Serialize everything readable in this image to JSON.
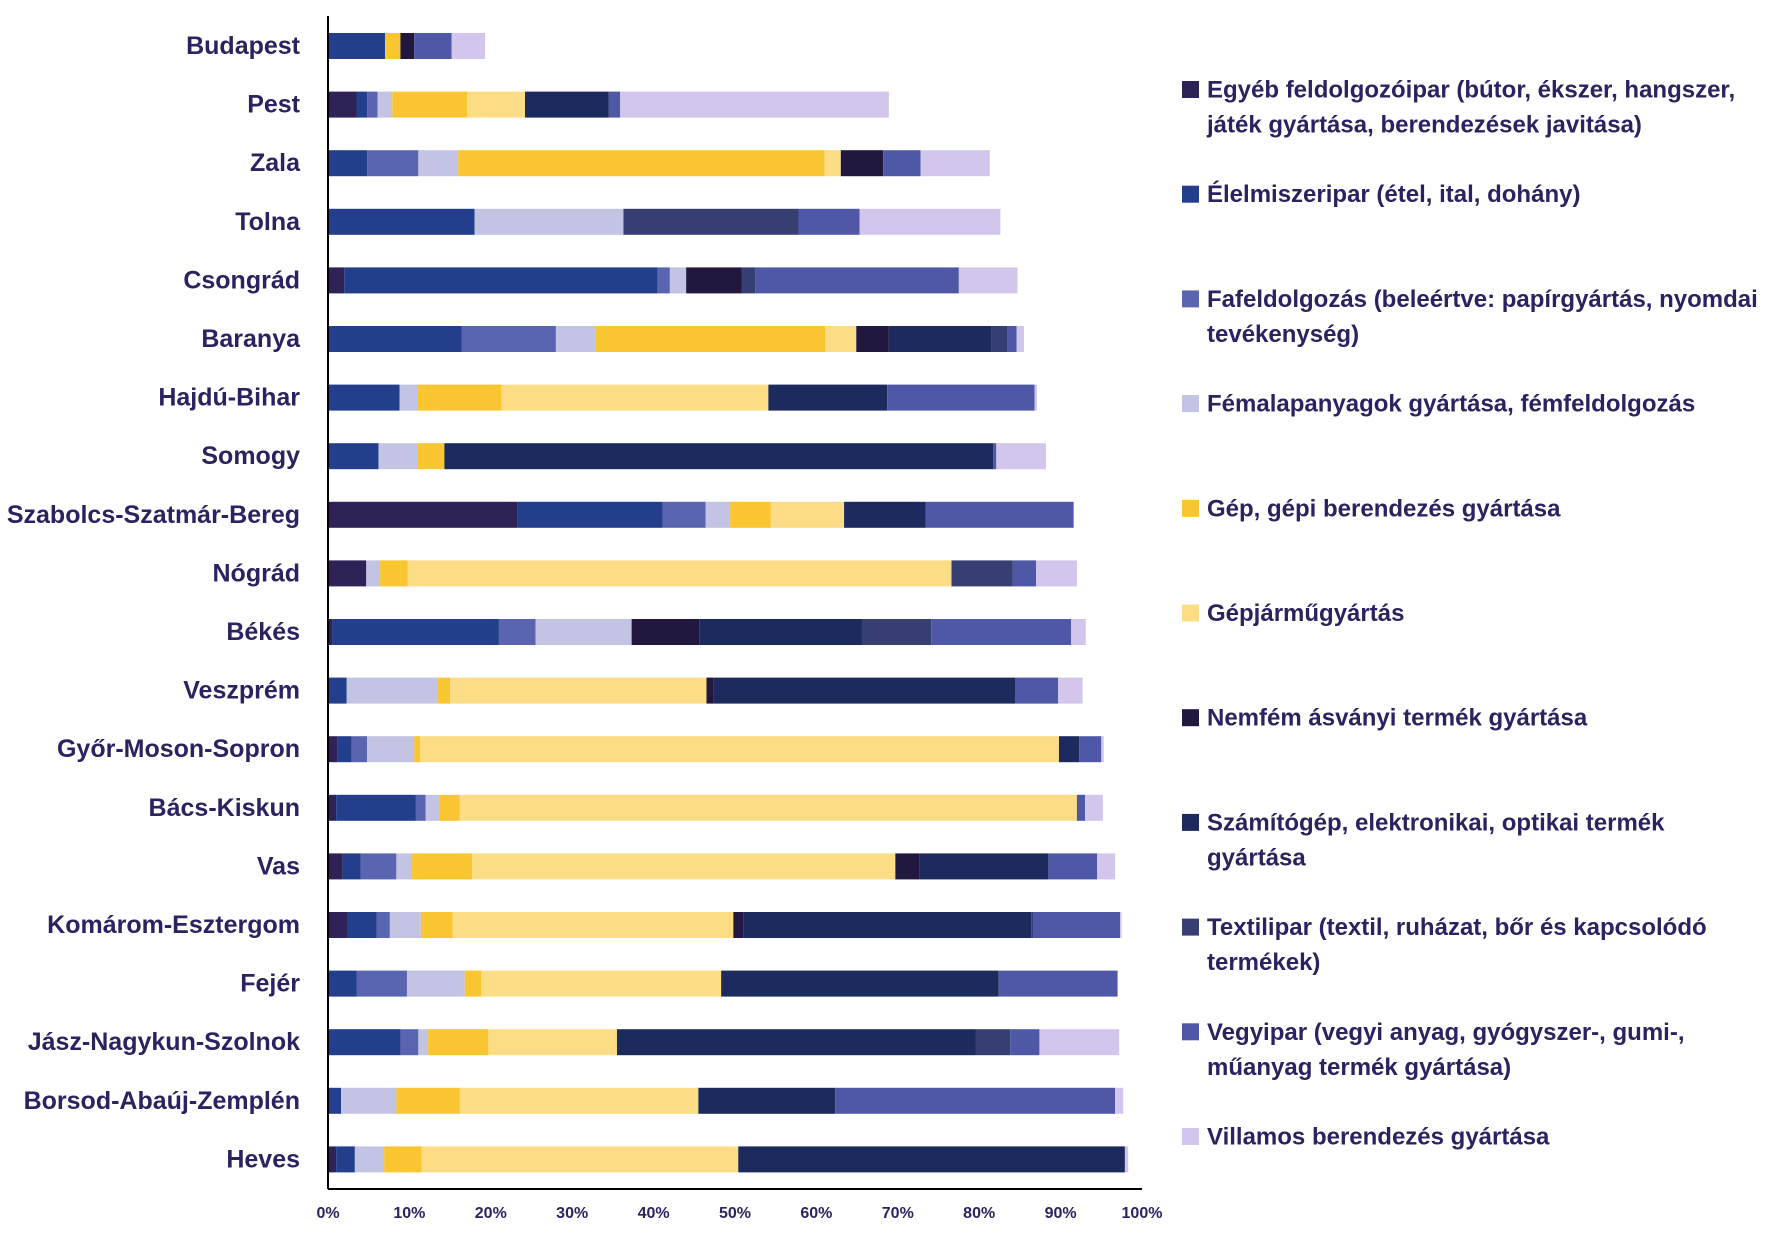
{
  "chart_data": {
    "type": "bar",
    "orientation": "horizontal",
    "stacked": "percent",
    "xlim": [
      0,
      100
    ],
    "ticks": [
      "0%",
      "10%",
      "20%",
      "30%",
      "40%",
      "50%",
      "60%",
      "70%",
      "80%",
      "90%",
      "100%"
    ],
    "grid": false,
    "legend_position": "right",
    "categories": [
      "Budapest",
      "Pest",
      "Zala",
      "Tolna",
      "Csongrád",
      "Baranya",
      "Hajdú-Bihar",
      "Somogy",
      "Szabolcs-Szatmár-Bereg",
      "Nógrád",
      "Békés",
      "Veszprém",
      "Győr-Moson-Sopron",
      "Bács-Kiskun",
      "Vas",
      "Komárom-Esztergom",
      "Fejér",
      "Jász-Nagykun-Szolnok",
      "Borsod-Abaúj-Zemplén",
      "Heves"
    ],
    "series": [
      {
        "name": "Egyéb feldolgozóipar (bútor, ékszer, hangszer, játék gyártása, berendezések javítása)",
        "lines": [
          "Egyéb feldolgozóipar (bútor, ékszer, hangszer,",
          "játék gyártása, berendezések javitása)"
        ],
        "color": "#2e2257",
        "values": [
          0,
          3.5,
          0,
          0,
          2,
          0,
          0,
          0,
          23.3,
          4.7,
          0.5,
          0,
          1.2,
          1,
          1.8,
          2.4,
          0,
          0,
          0,
          1
        ]
      },
      {
        "name": "Élelmiszeripar (étel, ital, dohány)",
        "lines": [
          "Élelmiszeripar (étel, ital, dohány)"
        ],
        "color": "#233e8b",
        "values": [
          7,
          1.3,
          4.8,
          18,
          38.5,
          16.4,
          8.8,
          6.2,
          17.8,
          0,
          20.5,
          2.3,
          1.7,
          9.8,
          2.2,
          3.6,
          3.5,
          8.9,
          1.6,
          2.3
        ]
      },
      {
        "name": "Fafeldolgozás (beleértve: papírgyártás, nyomdai tevékenység)",
        "lines": [
          "Fafeldolgozás (beleértve: papírgyártás, nyomdai",
          "tevékenység)"
        ],
        "color": "#5a65b2",
        "values": [
          0,
          1.3,
          6.3,
          0,
          1.5,
          11.6,
          0,
          0,
          5.3,
          0,
          4.5,
          0,
          1.9,
          1.2,
          4.4,
          1.6,
          6.2,
          2.2,
          0,
          0
        ]
      },
      {
        "name": "Fémalapanyagok gyártása, fémfeldolgozás",
        "lines": [
          "Fémalapanyagok gyártása, fémfeldolgozás"
        ],
        "color": "#c3c3e3",
        "values": [
          0,
          1.8,
          4.9,
          18.3,
          2,
          4.9,
          2.2,
          4.8,
          3,
          1.7,
          11.8,
          11.1,
          5.8,
          1.7,
          1.8,
          3.8,
          7.1,
          1.2,
          6.8,
          3.6
        ]
      },
      {
        "name": "Gép, gépi berendezés gyártása",
        "lines": [
          "Gép, gépi berendezés gyártása"
        ],
        "color": "#f9c531",
        "values": [
          1.9,
          9.2,
          45,
          0,
          0,
          28.2,
          10.3,
          3.3,
          5,
          3.4,
          0,
          1.6,
          0.7,
          2.5,
          7.5,
          3.9,
          2,
          7.4,
          7.8,
          4.6
        ]
      },
      {
        "name": "Gépjárműgyártás",
        "lines": [
          "Gépjárműgyártás"
        ],
        "color": "#fcdc84",
        "values": [
          0,
          7.1,
          2,
          0,
          0,
          3.8,
          32.8,
          0,
          9,
          66.8,
          0,
          31.5,
          78.5,
          75.8,
          52,
          34.5,
          29.5,
          15.8,
          29.3,
          38.9
        ]
      },
      {
        "name": "Nemfém ásványi termék gyártása",
        "lines": [
          "Nemfém ásványi termék gyártása"
        ],
        "color": "#22183f",
        "values": [
          1.7,
          0,
          5.2,
          0,
          6.8,
          4,
          0,
          0,
          0,
          0,
          8.3,
          0.9,
          0,
          0,
          3,
          1.2,
          0,
          0,
          0,
          0
        ]
      },
      {
        "name": "Számítógép, elektronikai, optikai termék gyártása",
        "lines": [
          "Számítógép, elektronikai, optikai termék",
          "gyártása"
        ],
        "color": "#1d2a5e",
        "values": [
          0,
          10.3,
          0,
          0,
          0,
          12.6,
          14.6,
          67.4,
          10,
          0,
          20,
          37,
          2.5,
          0,
          15.8,
          35.4,
          34.1,
          44.1,
          16.8,
          47.5
        ]
      },
      {
        "name": "Textilipar (textil, ruházat, bőr és kapcsolódó termékek)",
        "lines": [
          "Textilipar (textil, ruházat, bőr és kapcsolódó",
          "termékek)"
        ],
        "color": "#373f72",
        "values": [
          0,
          0,
          0,
          21.5,
          1.7,
          2,
          0,
          0,
          0,
          7.5,
          8.5,
          0,
          0,
          0,
          0,
          0.3,
          0,
          4.2,
          0,
          0
        ]
      },
      {
        "name": "Vegyipar (vegyi anyag, gyógyszer-, gumi-, műanyag termék gyártása)",
        "lines": [
          "Vegyipar (vegyi anyag, gyógyszer-, gumi-,",
          "műanyag termék gyártása)"
        ],
        "color": "#4f58a6",
        "values": [
          4.6,
          1.4,
          4.6,
          7.5,
          25,
          1.1,
          18.1,
          0.4,
          18.2,
          2.9,
          17.2,
          5.3,
          2.7,
          1,
          6,
          10.6,
          14.6,
          3.6,
          34.4,
          0
        ]
      },
      {
        "name": "Villamos berendezés gyártása",
        "lines": [
          "Villamos berendezés gyártása"
        ],
        "color": "#d2c6ec",
        "values": [
          4.1,
          33,
          8.5,
          17.3,
          7.2,
          0.9,
          0.3,
          6.1,
          0,
          5,
          1.8,
          3,
          0.3,
          2.2,
          2.2,
          0.2,
          0,
          9.8,
          1,
          0.4
        ]
      }
    ]
  }
}
